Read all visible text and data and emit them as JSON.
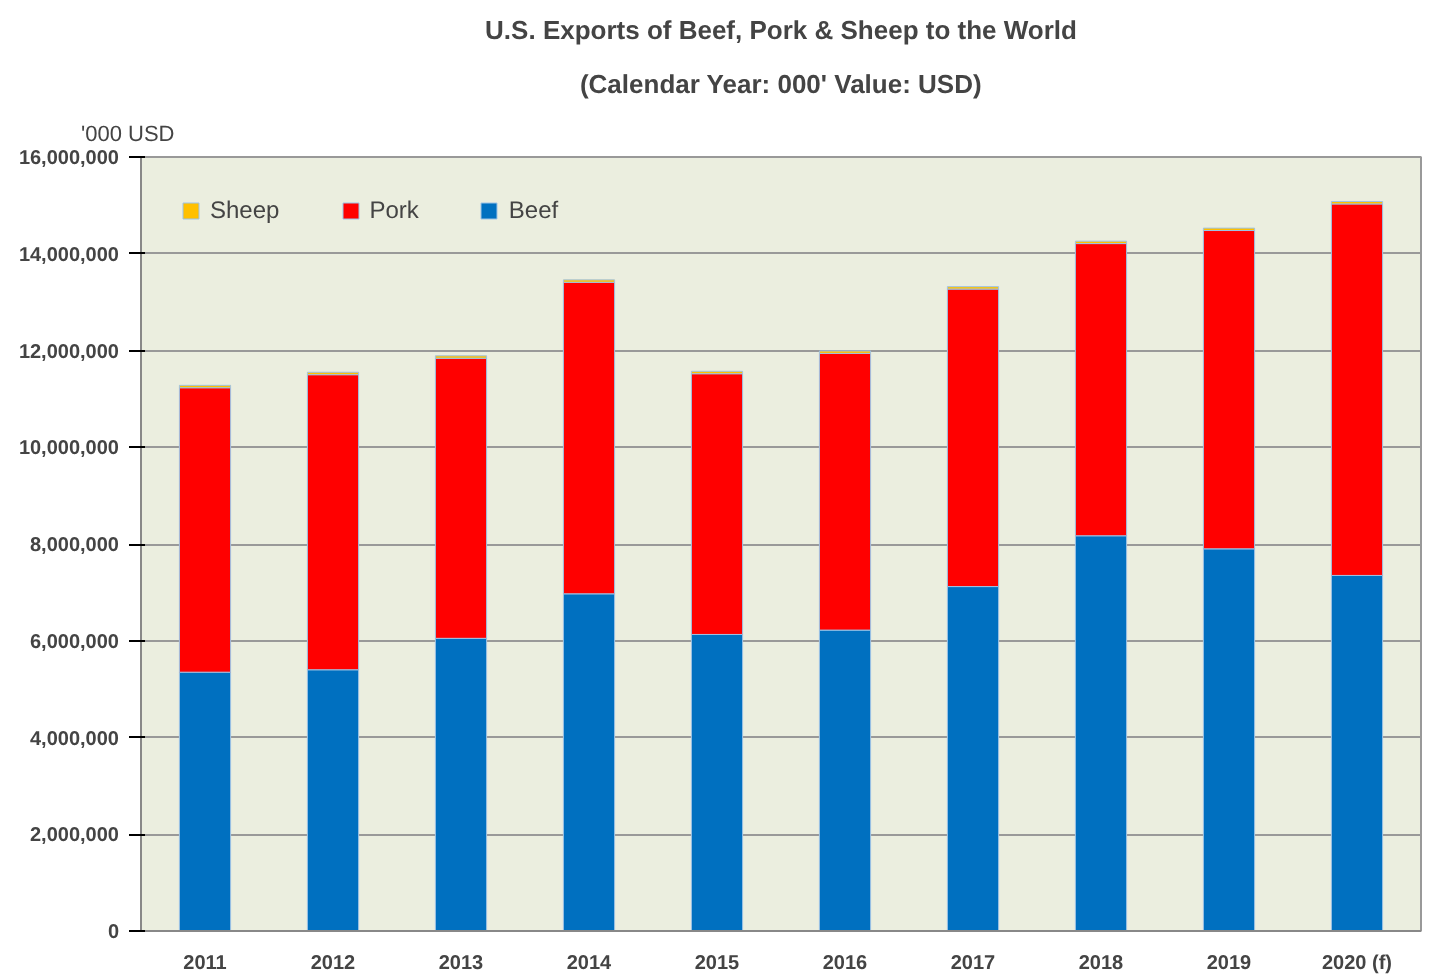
{
  "chart_data": {
    "type": "bar",
    "title": "U.S. Exports of Beef, Pork & Sheep to the World",
    "subtitle": "(Calendar Year: 000' Value: USD)",
    "ylabel": "'000 USD",
    "categories": [
      "2011",
      "2012",
      "2013",
      "2014",
      "2015",
      "2016",
      "2017",
      "2018",
      "2019",
      "2020 (f)"
    ],
    "stacked": true,
    "series": [
      {
        "name": "Beef",
        "color": "#0070c0",
        "values": [
          5350000,
          5400000,
          6050000,
          6970000,
          6130000,
          6220000,
          7120000,
          8170000,
          7900000,
          7350000
        ]
      },
      {
        "name": "Pork",
        "color": "#ff0000",
        "values": [
          5880000,
          6100000,
          5790000,
          6440000,
          5390000,
          5720000,
          6150000,
          6040000,
          6580000,
          7680000
        ]
      },
      {
        "name": "Sheep",
        "color": "#ffc000",
        "values": [
          50000,
          50000,
          50000,
          50000,
          50000,
          50000,
          50000,
          50000,
          50000,
          50000
        ]
      }
    ],
    "ylim": [
      0,
      16000000
    ],
    "yticks": [
      0,
      {
        "value": 2000000,
        "label": "2,000,000"
      },
      {
        "value": 4000000,
        "label": "4,000,000"
      },
      {
        "value": 6000000,
        "label": "6,000,000"
      },
      {
        "value": 8000000,
        "label": "8,000,000"
      },
      {
        "value": 10000000,
        "label": "10,000,000"
      },
      {
        "value": 12000000,
        "label": "12,000,000"
      },
      {
        "value": 14000000,
        "label": "14,000,000"
      },
      {
        "value": 16000000,
        "label": "16,000,000"
      }
    ],
    "grid": "y",
    "legend": "top left"
  }
}
